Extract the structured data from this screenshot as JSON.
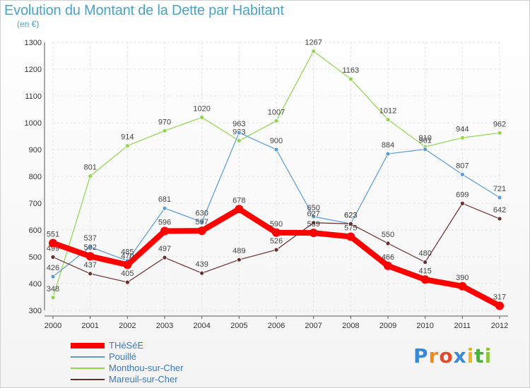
{
  "chart_data": {
    "type": "line",
    "title": "Evolution du Montant de la Dette par Habitant",
    "subtitle": "(en €)",
    "xlabel": "",
    "ylabel": "",
    "categories": [
      "2000",
      "2001",
      "2002",
      "2003",
      "2004",
      "2005",
      "2006",
      "2007",
      "2008",
      "2009",
      "2010",
      "2011",
      "2012"
    ],
    "ylim": [
      300,
      1300
    ],
    "yticks": [
      300,
      400,
      500,
      600,
      700,
      800,
      900,
      1000,
      1100,
      1200,
      1300
    ],
    "grid": true,
    "legend_position": "bottom-left",
    "series": [
      {
        "name": "THéSéE",
        "color": "#ff0000",
        "values": [
          551,
          502,
          470,
          596,
          597,
          678,
          590,
          589,
          575,
          466,
          415,
          390,
          317
        ]
      },
      {
        "name": "Pouillé",
        "color": "#5b9bd5",
        "values": [
          426,
          537,
          485,
          681,
          630,
          963,
          900,
          650,
          623,
          884,
          901,
          807,
          721
        ]
      },
      {
        "name": "Monthou-sur-Cher",
        "color": "#8fd64e",
        "values": [
          348,
          801,
          914,
          970,
          1020,
          933,
          1007,
          1267,
          1163,
          1012,
          910,
          944,
          962
        ]
      },
      {
        "name": "Mareuil-sur-Cher",
        "color": "#6b2c2c",
        "values": [
          499,
          437,
          405,
          497,
          439,
          489,
          526,
          627,
          623,
          550,
          480,
          699,
          642
        ]
      }
    ]
  },
  "brand": {
    "logo_letters": [
      "P",
      "r",
      "o",
      "x",
      "i",
      "t",
      "i"
    ]
  }
}
